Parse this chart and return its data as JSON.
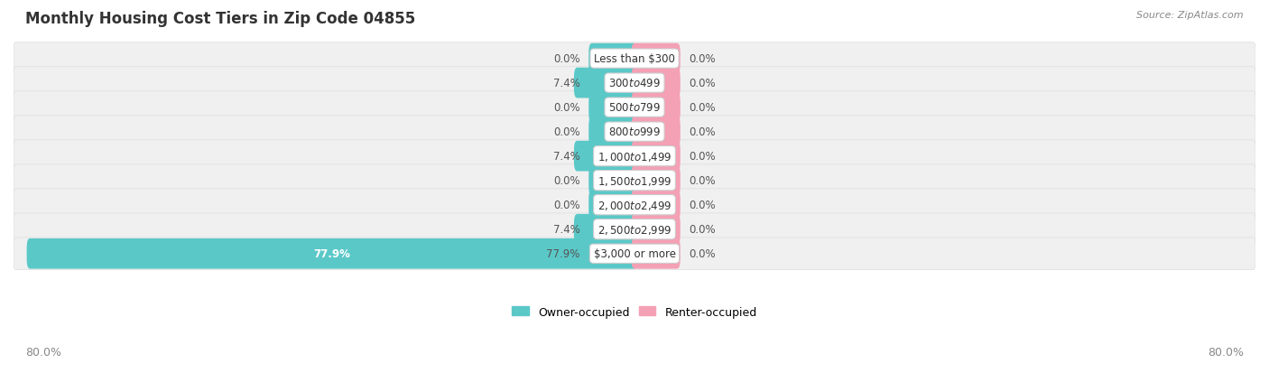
{
  "title": "Monthly Housing Cost Tiers in Zip Code 04855",
  "source": "Source: ZipAtlas.com",
  "categories": [
    "Less than $300",
    "$300 to $499",
    "$500 to $799",
    "$800 to $999",
    "$1,000 to $1,499",
    "$1,500 to $1,999",
    "$2,000 to $2,499",
    "$2,500 to $2,999",
    "$3,000 or more"
  ],
  "owner_values": [
    0.0,
    7.4,
    0.0,
    0.0,
    7.4,
    0.0,
    0.0,
    7.4,
    77.9
  ],
  "renter_values": [
    0.0,
    0.0,
    0.0,
    0.0,
    0.0,
    0.0,
    0.0,
    0.0,
    0.0
  ],
  "owner_color": "#5BC8C8",
  "renter_color": "#F4A0B5",
  "axis_min": -80.0,
  "axis_max": 80.0,
  "owner_label": "Owner-occupied",
  "renter_label": "Renter-occupied",
  "title_fontsize": 12,
  "label_fontsize": 8.5,
  "cat_fontsize": 8.5,
  "tick_fontsize": 9,
  "source_fontsize": 8,
  "background_color": "#FFFFFF",
  "row_bg_color": "#F0F0F0",
  "row_border_color": "#DDDDDD",
  "min_owner_bar": 7.0,
  "min_renter_bar": 7.0,
  "value_label_color": "#555555",
  "white_label_color": "#FFFFFF",
  "center_label_border": "#CCCCCC"
}
